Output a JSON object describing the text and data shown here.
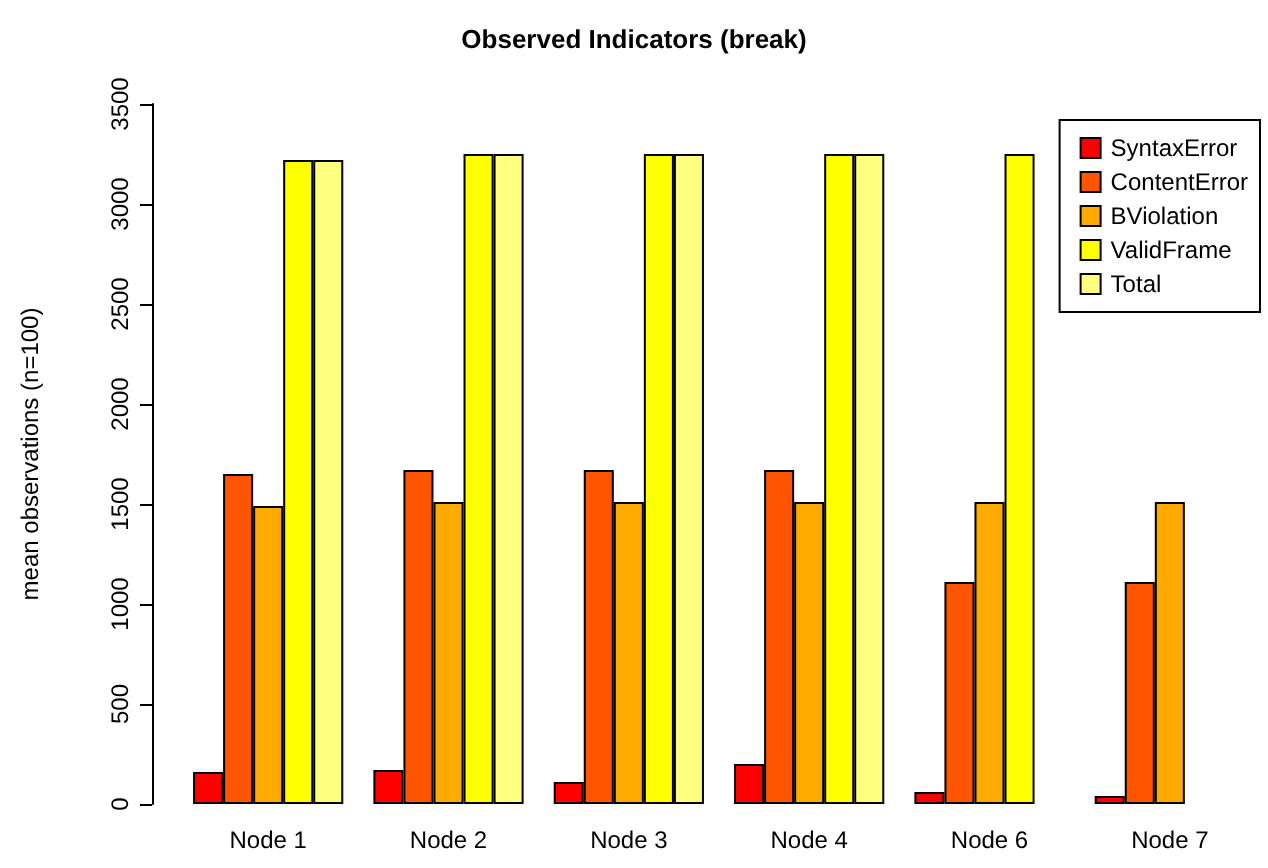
{
  "chart_data": {
    "type": "bar",
    "title": "Observed Indicators (break)",
    "ylabel": "mean observations (n=100)",
    "categories": [
      "Node 1",
      "Node 2",
      "Node 3",
      "Node 4",
      "Node 6",
      "Node 7"
    ],
    "series": [
      {
        "name": "SyntaxError",
        "color": "#ff0000",
        "values": [
          160,
          170,
          110,
          200,
          60,
          40
        ]
      },
      {
        "name": "ContentError",
        "color": "#ff5500",
        "values": [
          1650,
          1670,
          1670,
          1670,
          1110,
          1110
        ]
      },
      {
        "name": "BViolation",
        "color": "#ffaa00",
        "values": [
          1490,
          1510,
          1510,
          1510,
          1510,
          1510
        ]
      },
      {
        "name": "ValidFrame",
        "color": "#ffff00",
        "values": [
          3220,
          3250,
          3250,
          3250,
          3250,
          null
        ]
      },
      {
        "name": "Total",
        "color": "#ffff80",
        "values": [
          3220,
          3250,
          3250,
          3250,
          null,
          null
        ]
      }
    ],
    "ylim": [
      0,
      3500
    ],
    "yticks": [
      0,
      500,
      1000,
      1500,
      2000,
      2500,
      3000,
      3500
    ],
    "grid": false,
    "legend": "top right"
  }
}
